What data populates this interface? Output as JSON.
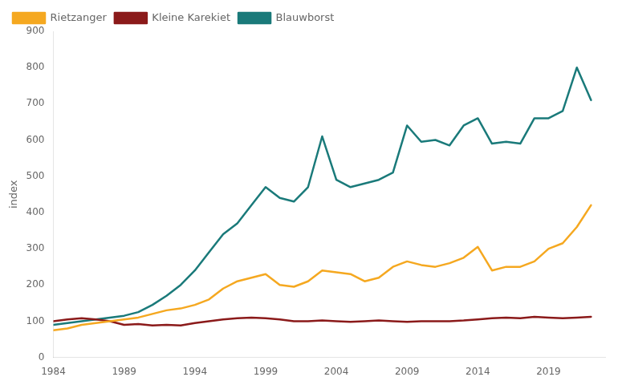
{
  "chart_data": {
    "type": "line",
    "ylabel": "index",
    "x": [
      1984,
      1985,
      1986,
      1987,
      1988,
      1989,
      1990,
      1991,
      1992,
      1993,
      1994,
      1995,
      1996,
      1997,
      1998,
      1999,
      2000,
      2001,
      2002,
      2003,
      2004,
      2005,
      2006,
      2007,
      2008,
      2009,
      2010,
      2011,
      2012,
      2013,
      2014,
      2015,
      2016,
      2017,
      2018,
      2019,
      2020,
      2021,
      2022
    ],
    "series": [
      {
        "name": "Rietzanger",
        "color": "#f5a820",
        "values": [
          75,
          80,
          90,
          95,
          100,
          105,
          110,
          120,
          130,
          135,
          145,
          160,
          190,
          210,
          220,
          230,
          200,
          195,
          210,
          240,
          235,
          230,
          210,
          220,
          250,
          265,
          255,
          250,
          260,
          275,
          305,
          240,
          250,
          250,
          265,
          300,
          315,
          360,
          420
        ]
      },
      {
        "name": "Kleine Karekiet",
        "color": "#8b1a1a",
        "values": [
          100,
          105,
          108,
          105,
          100,
          90,
          92,
          88,
          90,
          88,
          95,
          100,
          105,
          108,
          110,
          108,
          105,
          100,
          100,
          102,
          100,
          98,
          100,
          102,
          100,
          98,
          100,
          100,
          100,
          102,
          105,
          108,
          110,
          108,
          112,
          110,
          108,
          110,
          112
        ]
      },
      {
        "name": "Blauwborst",
        "color": "#1a7a7a",
        "values": [
          90,
          95,
          100,
          105,
          110,
          115,
          125,
          145,
          170,
          200,
          240,
          290,
          340,
          370,
          420,
          470,
          440,
          430,
          470,
          610,
          490,
          470,
          480,
          490,
          510,
          640,
          595,
          600,
          585,
          640,
          660,
          590,
          595,
          590,
          660,
          660,
          680,
          800,
          710
        ]
      }
    ],
    "xlim": [
      1984,
      2023
    ],
    "xticks": [
      1984,
      1989,
      1994,
      1999,
      2004,
      2009,
      2014,
      2019
    ],
    "ylim": [
      0,
      900
    ],
    "yticks": [
      0,
      100,
      200,
      300,
      400,
      500,
      600,
      700,
      800,
      900
    ],
    "grid": false,
    "legend": "upper left"
  }
}
